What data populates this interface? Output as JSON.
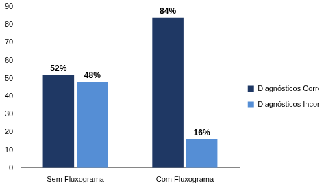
{
  "chart_data": {
    "type": "bar",
    "categories": [
      "Sem Fluxograma",
      "Com Fluxograma"
    ],
    "series": [
      {
        "name": "Diagnósticos Corretos",
        "color": "#1f3864",
        "values": [
          52,
          84
        ],
        "value_labels": [
          "52%",
          "84%"
        ]
      },
      {
        "name": "Diagnósticos Incorretos",
        "color": "#558ed5",
        "values": [
          48,
          16
        ],
        "value_labels": [
          "48%",
          "16%"
        ]
      }
    ],
    "ylim": [
      0,
      90
    ],
    "yticks": [
      0,
      10,
      20,
      30,
      40,
      50,
      60,
      70,
      80,
      90
    ],
    "grid": false,
    "legend": "right",
    "data_labels": true
  }
}
